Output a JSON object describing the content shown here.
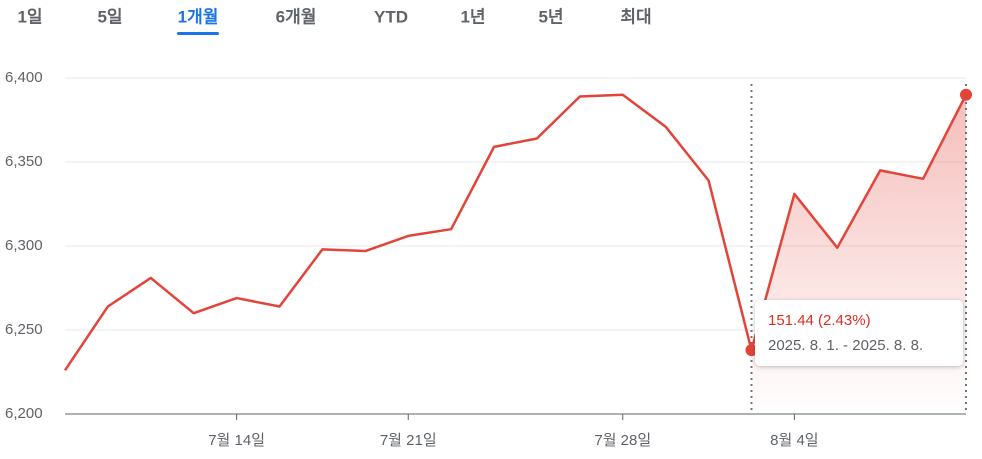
{
  "tabs": {
    "items": [
      "1일",
      "5일",
      "1개월",
      "6개월",
      "YTD",
      "1년",
      "5년",
      "최대"
    ],
    "selected": 2
  },
  "chart_data": {
    "type": "line",
    "categories": [
      null,
      null,
      null,
      null,
      "7월 14일",
      null,
      null,
      null,
      "7월 21일",
      null,
      null,
      null,
      null,
      "7월 28일",
      null,
      null,
      null,
      "8월 4일",
      null,
      null,
      null,
      null
    ],
    "series": [
      {
        "color": "#e3443a",
        "values": [
          6226,
          6264,
          6281,
          6260,
          6269,
          6264,
          6298,
          6297,
          6306,
          6310,
          6359,
          6364,
          6389,
          6390,
          6371,
          6339,
          6238,
          6331,
          6299,
          6345,
          6340,
          6390
        ]
      }
    ],
    "ylim": [
      6200,
      6400
    ],
    "yticks": [
      {
        "value": 6200,
        "label": "6,200"
      },
      {
        "value": 6250,
        "label": "6,250"
      },
      {
        "value": 6300,
        "label": "6,300"
      },
      {
        "value": 6350,
        "label": "6,350"
      },
      {
        "value": 6400,
        "label": "6,400"
      }
    ],
    "grid": true,
    "selection": {
      "from": 16,
      "to": 21,
      "change": "151.44 (2.43%)",
      "range": "2025. 8. 1. - 2025. 8. 8."
    }
  }
}
